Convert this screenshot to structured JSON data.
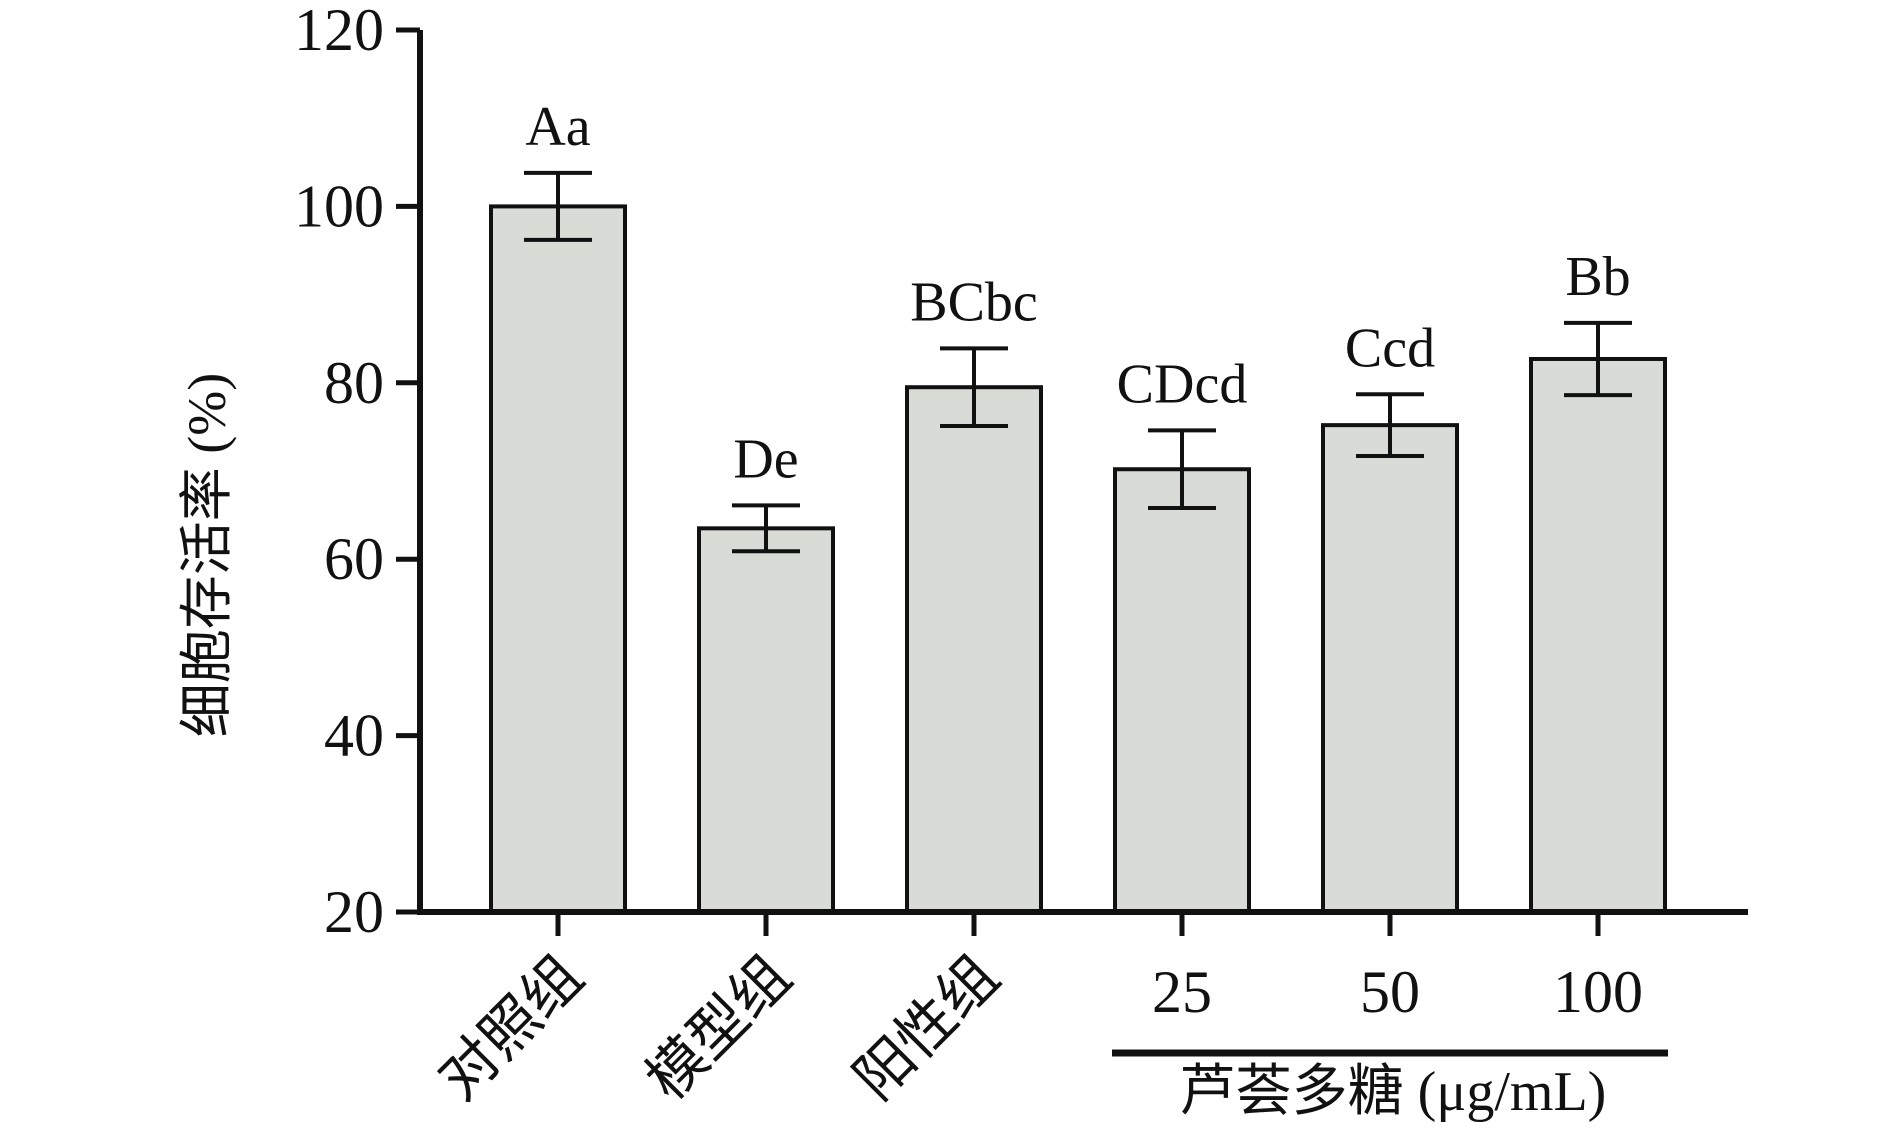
{
  "chart_data": {
    "type": "bar",
    "ylabel": "细胞存活率 (%)",
    "ylim": [
      20,
      120
    ],
    "yticks": [
      20,
      40,
      60,
      80,
      100,
      120
    ],
    "categories": [
      "对照组",
      "模型组",
      "阳性组",
      "25",
      "50",
      "100"
    ],
    "values": [
      100,
      63.5,
      79.5,
      70.2,
      75.2,
      82.7
    ],
    "errors": [
      3.8,
      2.6,
      4.4,
      4.4,
      3.5,
      4.1
    ],
    "significance": [
      "Aa",
      "De",
      "BCbc",
      "CDcd",
      "Ccd",
      "Bb"
    ],
    "group_label": "芦荟多糖 (μg/mL)",
    "group_categories": [
      "25",
      "50",
      "100"
    ],
    "bar_color": "#d9dbd7",
    "edge_color": "#111111"
  }
}
